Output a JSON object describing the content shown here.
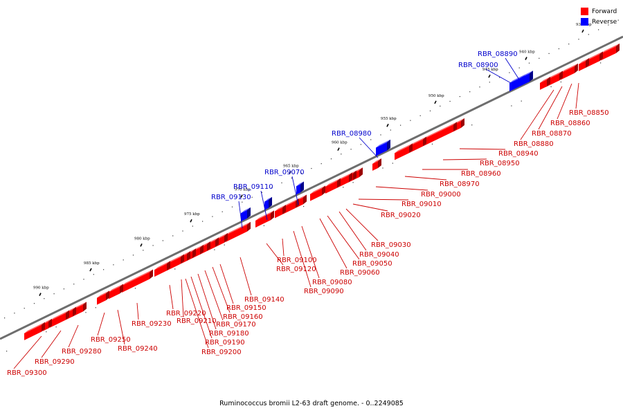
{
  "caption": "Ruminococcus bromii L2-63 draft genome. - 0..2249085",
  "legend": [
    {
      "label": "Forward",
      "color": "#ff0000"
    },
    {
      "label": "Reverse",
      "color": "#0000ff"
    }
  ],
  "colors": {
    "forward": "#ff0000",
    "reverse": "#0000ff",
    "backbone": "#6e6e6e",
    "forward_label": "#cc0000",
    "reverse_label": "#0000cc"
  },
  "ticks": [
    "935 kbp",
    "940 kbp",
    "945 kbp",
    "950 kbp",
    "955 kbp",
    "960 kbp",
    "965 kbp",
    "970 kbp",
    "975 kbp",
    "980 kbp",
    "985 kbp",
    "990 kbp"
  ],
  "forward_genes": [
    "RBR_08850",
    "RBR_08860",
    "RBR_08870",
    "RBR_08880",
    "RBR_08940",
    "RBR_08950",
    "RBR_08960",
    "RBR_08970",
    "RBR_09000",
    "RBR_09010",
    "RBR_09020",
    "RBR_09030",
    "RBR_09040",
    "RBR_09050",
    "RBR_09060",
    "RBR_09080",
    "RBR_09090",
    "RBR_09100",
    "RBR_09120",
    "RBR_09140",
    "RBR_09150",
    "RBR_09160",
    "RBR_09170",
    "RBR_09180",
    "RBR_09190",
    "RBR_09200",
    "RBR_09210",
    "RBR_09220",
    "RBR_09230",
    "RBR_09240",
    "RBR_09250",
    "RBR_09280",
    "RBR_09290",
    "RBR_09300"
  ],
  "reverse_genes": [
    "RBR_08890",
    "RBR_08900",
    "RBR_08980",
    "RBR_09070",
    "RBR_09110",
    "RBR_09130"
  ]
}
